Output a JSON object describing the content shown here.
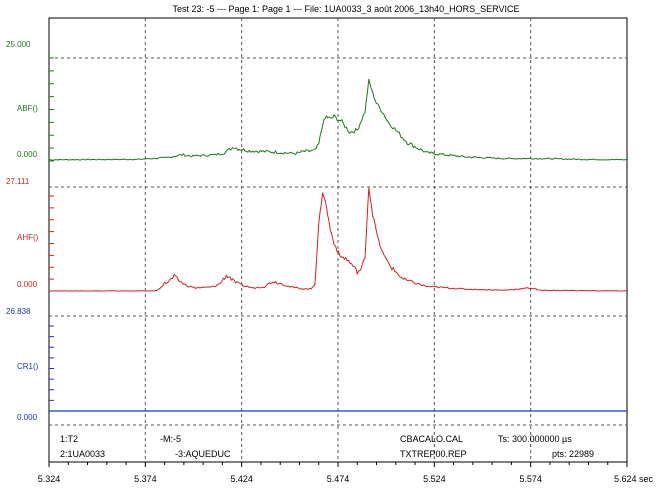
{
  "title": "Test 23: -5 --- Page 1: Page 1 --- File: 1UA0033_3 août 2006_13h40_HORS_SERVICE",
  "colors": {
    "abf": "#1a7a1a",
    "ahf": "#d42020",
    "cr1": "#2030c8",
    "frame": "#000000",
    "grid": "#555555"
  },
  "chart_data": [
    {
      "type": "line",
      "name": "ABF",
      "ylabel": "ABF()",
      "ylim": [
        0,
        25
      ],
      "ytick_labels": {
        "max": "25.000",
        "min": "0.000"
      },
      "xlim": [
        5.324,
        5.624
      ],
      "x": [
        5.324,
        5.37,
        5.385,
        5.393,
        5.398,
        5.41,
        5.415,
        5.42,
        5.422,
        5.428,
        5.44,
        5.452,
        5.456,
        5.462,
        5.464,
        5.466,
        5.468,
        5.47,
        5.472,
        5.476,
        5.48,
        5.484,
        5.488,
        5.49,
        5.492,
        5.494,
        5.497,
        5.5,
        5.505,
        5.51,
        5.52,
        5.54,
        5.56,
        5.58,
        5.6,
        5.624
      ],
      "y": [
        0.3,
        0.4,
        0.8,
        1.5,
        1.2,
        1.5,
        2.0,
        3.5,
        3.0,
        2.5,
        2.2,
        1.8,
        2.3,
        2.5,
        4.0,
        9.0,
        10.8,
        10.2,
        10.8,
        9.5,
        7.0,
        7.5,
        12.0,
        19.5,
        16.5,
        14.0,
        12.0,
        9.5,
        7.0,
        4.5,
        2.0,
        1.0,
        0.6,
        0.6,
        0.4,
        0.3
      ]
    },
    {
      "type": "line",
      "name": "AHF",
      "ylabel": "AHF()",
      "ylim": [
        0,
        27.111
      ],
      "ytick_labels": {
        "max": "27.111",
        "min": "0.000"
      },
      "xlim": [
        5.324,
        5.624
      ],
      "x": [
        5.324,
        5.376,
        5.38,
        5.384,
        5.386,
        5.389,
        5.392,
        5.395,
        5.4,
        5.408,
        5.412,
        5.416,
        5.418,
        5.42,
        5.424,
        5.43,
        5.436,
        5.44,
        5.444,
        5.45,
        5.455,
        5.46,
        5.462,
        5.464,
        5.466,
        5.468,
        5.47,
        5.472,
        5.475,
        5.478,
        5.481,
        5.484,
        5.486,
        5.488,
        5.49,
        5.492,
        5.495,
        5.498,
        5.502,
        5.508,
        5.52,
        5.54,
        5.56,
        5.574,
        5.576,
        5.578,
        5.6,
        5.624
      ],
      "y": [
        0,
        0,
        0.1,
        2.0,
        2.4,
        3.8,
        2.5,
        1.5,
        0.8,
        1.0,
        1.6,
        4.0,
        3.5,
        2.5,
        1.5,
        0.8,
        1.2,
        2.5,
        2.0,
        1.0,
        0.6,
        0.5,
        2.0,
        17.0,
        26.0,
        22.0,
        16.0,
        12.5,
        9.0,
        8.5,
        7.0,
        5.0,
        5.5,
        9.0,
        27.111,
        20.0,
        13.0,
        9.0,
        6.0,
        3.0,
        1.2,
        0.5,
        0.2,
        0.8,
        0.6,
        0.2,
        0.1,
        0
      ]
    },
    {
      "type": "line",
      "name": "CR1",
      "ylabel": "CR1()",
      "ylim": [
        0,
        26.838
      ],
      "ytick_labels": {
        "max": "26.838",
        "min": "0.000"
      },
      "xlim": [
        5.324,
        5.624
      ],
      "x": [
        5.324,
        5.624
      ],
      "y": [
        0,
        0
      ]
    }
  ],
  "x_ticks": [
    {
      "value": 5.324,
      "label": "5.324"
    },
    {
      "value": 5.374,
      "label": "5.374"
    },
    {
      "value": 5.424,
      "label": "5.424"
    },
    {
      "value": 5.474,
      "label": "5.474"
    },
    {
      "value": 5.524,
      "label": "5.524"
    },
    {
      "value": 5.574,
      "label": "5.574"
    },
    {
      "value": 5.624,
      "label": "5.624 sec"
    }
  ],
  "info": {
    "row1": {
      "channel": "1:T2",
      "marker": "-M:-5",
      "cal": "CBACALO.CAL",
      "ts": "Ts: 300.000000 µs"
    },
    "row2": {
      "channel": "2:1UA0033",
      "site": "-3:AQUEDUC",
      "rep": "TXTREP00.REP",
      "pts": "pts: 22989"
    }
  }
}
